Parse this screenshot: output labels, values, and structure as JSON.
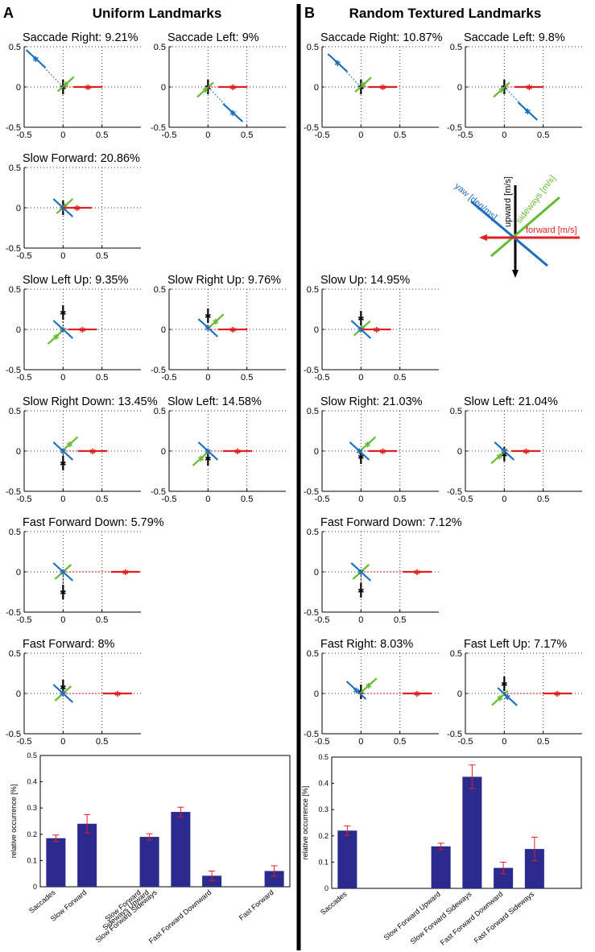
{
  "headers": {
    "A": "A",
    "A_title": "Uniform Landmarks",
    "B": "B",
    "B_title": "Random Textured Landmarks"
  },
  "colors": {
    "forward": "#e02020",
    "sideways": "#66bb33",
    "upward": "#000000",
    "yaw": "#1a6fbf",
    "bar": "#2b2a8f",
    "errorbar": "#e02020"
  },
  "axis_ticks": {
    "x": [
      "-0.5",
      "0",
      "0.5"
    ],
    "y": [
      "0.5",
      "0",
      "-0.5"
    ]
  },
  "legend": {
    "upward": "upward [m/s]",
    "sideways": "sideways [m/s]",
    "forward": "forward [m/s]",
    "yaw": "yaw [deg/ms]"
  },
  "chart_data": [
    {
      "type": "scatter",
      "panel": "A",
      "row": 0,
      "col": 0,
      "title": "Saccade Right: 9.21%",
      "xlim": [
        -0.5,
        1
      ],
      "ylim": [
        -0.5,
        0.5
      ],
      "forward": 0.32,
      "sideways": 0.05,
      "upward": 0.0,
      "yaw": {
        "x": -0.35,
        "y": 0.35
      }
    },
    {
      "type": "scatter",
      "panel": "A",
      "row": 0,
      "col": 1,
      "title": "Saccade Left: 9%",
      "xlim": [
        -0.5,
        1
      ],
      "ylim": [
        -0.5,
        0.5
      ],
      "forward": 0.32,
      "sideways": -0.05,
      "upward": 0.0,
      "yaw": {
        "x": 0.32,
        "y": -0.32
      }
    },
    {
      "type": "scatter",
      "panel": "A",
      "row": 1,
      "col": 0,
      "title": "Slow Forward: 20.86%",
      "xlim": [
        -0.5,
        1
      ],
      "ylim": [
        -0.5,
        0.5
      ],
      "forward": 0.18,
      "sideways": 0.03,
      "upward": 0.0,
      "yaw": {
        "x": 0.0,
        "y": 0.0
      }
    },
    {
      "type": "scatter",
      "panel": "A",
      "row": 2,
      "col": 0,
      "title": "Slow Left Up: 9.35%",
      "xlim": [
        -0.5,
        1
      ],
      "ylim": [
        -0.5,
        0.5
      ],
      "forward": 0.25,
      "sideways": -0.13,
      "upward": 0.21,
      "yaw": {
        "x": 0.0,
        "y": 0.0
      }
    },
    {
      "type": "scatter",
      "panel": "A",
      "row": 2,
      "col": 1,
      "title": "Slow Right Up: 9.76%",
      "xlim": [
        -0.5,
        1
      ],
      "ylim": [
        -0.5,
        0.5
      ],
      "forward": 0.32,
      "sideways": 0.14,
      "upward": 0.17,
      "yaw": {
        "x": 0.0,
        "y": 0.02
      }
    },
    {
      "type": "scatter",
      "panel": "A",
      "row": 3,
      "col": 0,
      "title": "Slow Right Down: 13.45%",
      "xlim": [
        -0.5,
        1
      ],
      "ylim": [
        -0.5,
        0.5
      ],
      "forward": 0.38,
      "sideways": 0.12,
      "upward": -0.15,
      "yaw": {
        "x": 0.0,
        "y": 0.0
      }
    },
    {
      "type": "scatter",
      "panel": "A",
      "row": 3,
      "col": 1,
      "title": "Slow Left: 14.58%",
      "xlim": [
        -0.5,
        1
      ],
      "ylim": [
        -0.5,
        0.5
      ],
      "forward": 0.38,
      "sideways": -0.13,
      "upward": -0.09,
      "yaw": {
        "x": 0.0,
        "y": 0.0
      }
    },
    {
      "type": "scatter",
      "panel": "A",
      "row": 4,
      "col": 0,
      "title": "Fast Forward Down: 5.79%",
      "xlim": [
        -0.5,
        1
      ],
      "ylim": [
        -0.5,
        0.5
      ],
      "forward": 0.8,
      "sideways": 0.0,
      "upward": -0.25,
      "yaw": {
        "x": 0.0,
        "y": 0.0
      }
    },
    {
      "type": "scatter",
      "panel": "A",
      "row": 5,
      "col": 0,
      "title": "Fast Forward: 8%",
      "xlim": [
        -0.5,
        1
      ],
      "ylim": [
        -0.5,
        0.5
      ],
      "forward": 0.7,
      "sideways": 0.0,
      "upward": 0.08,
      "yaw": {
        "x": 0.0,
        "y": 0.0
      }
    },
    {
      "type": "scatter",
      "panel": "B",
      "row": 0,
      "col": 0,
      "title": "Saccade Right: 10.87%",
      "xlim": [
        -0.5,
        1
      ],
      "ylim": [
        -0.5,
        0.5
      ],
      "forward": 0.28,
      "sideways": 0.04,
      "upward": 0.0,
      "yaw": {
        "x": -0.3,
        "y": 0.3
      }
    },
    {
      "type": "scatter",
      "panel": "B",
      "row": 0,
      "col": 1,
      "title": "Saccade Left: 9.8%",
      "xlim": [
        -0.5,
        1
      ],
      "ylim": [
        -0.5,
        0.5
      ],
      "forward": 0.32,
      "sideways": -0.05,
      "upward": 0.0,
      "yaw": {
        "x": 0.3,
        "y": -0.3
      }
    },
    {
      "type": "scatter",
      "panel": "B",
      "row": 2,
      "col": 0,
      "title": "Slow Up: 14.95%",
      "xlim": [
        -0.5,
        1
      ],
      "ylim": [
        -0.5,
        0.5
      ],
      "forward": 0.2,
      "sideways": 0.02,
      "upward": 0.14,
      "yaw": {
        "x": 0.0,
        "y": 0.0
      }
    },
    {
      "type": "scatter",
      "panel": "B",
      "row": 3,
      "col": 0,
      "title": "Slow Right: 21.03%",
      "xlim": [
        -0.5,
        1
      ],
      "ylim": [
        -0.5,
        0.5
      ],
      "forward": 0.28,
      "sideways": 0.12,
      "upward": -0.07,
      "yaw": {
        "x": -0.02,
        "y": 0.0
      }
    },
    {
      "type": "scatter",
      "panel": "B",
      "row": 3,
      "col": 1,
      "title": "Slow Left: 21.04%",
      "xlim": [
        -0.5,
        1
      ],
      "ylim": [
        -0.5,
        0.5
      ],
      "forward": 0.28,
      "sideways": -0.09,
      "upward": -0.04,
      "yaw": {
        "x": 0.0,
        "y": 0.0
      }
    },
    {
      "type": "scatter",
      "panel": "B",
      "row": 4,
      "col": 0,
      "title": "Fast Forward Down: 7.12%",
      "xlim": [
        -0.5,
        1
      ],
      "ylim": [
        -0.5,
        0.5
      ],
      "forward": 0.72,
      "sideways": 0.0,
      "upward": -0.23,
      "yaw": {
        "x": 0.0,
        "y": 0.0
      }
    },
    {
      "type": "scatter",
      "panel": "B",
      "row": 5,
      "col": 0,
      "title": "Fast Right: 8.03%",
      "xlim": [
        -0.5,
        1
      ],
      "ylim": [
        -0.5,
        0.5
      ],
      "forward": 0.72,
      "sideways": 0.14,
      "upward": 0.02,
      "yaw": {
        "x": -0.06,
        "y": 0.04
      }
    },
    {
      "type": "scatter",
      "panel": "B",
      "row": 5,
      "col": 1,
      "title": "Fast Left Up: 7.17%",
      "xlim": [
        -0.5,
        1
      ],
      "ylim": [
        -0.5,
        0.5
      ],
      "forward": 0.68,
      "sideways": -0.08,
      "upward": 0.12,
      "yaw": {
        "x": 0.04,
        "y": -0.04
      }
    },
    {
      "type": "bar",
      "panel": "A",
      "ylabel": "relative occurrence [%]",
      "ylim": [
        0,
        0.5
      ],
      "yticks": [
        "0",
        "0.1",
        "0.2",
        "0.3",
        "0.4",
        "0.5"
      ],
      "categories": [
        "Saccades",
        "Slow Forward",
        "",
        "Slow Forward Sideways Upward",
        "Slow Forward Sideways",
        "Fast Forward Downward",
        "",
        "Fast Forward"
      ],
      "tick_labels": [
        "Saccades",
        "Slow Forward",
        "Slow Forward",
        "Sideways Upward",
        "Slow Forward Sideways",
        "Fast Forward Downward",
        "Fast Forward"
      ],
      "values": [
        0.185,
        0.24,
        null,
        0.19,
        0.285,
        0.042,
        null,
        0.06
      ],
      "errors": [
        0.012,
        0.035,
        null,
        0.012,
        0.018,
        0.018,
        null,
        0.02
      ]
    },
    {
      "type": "bar",
      "panel": "B",
      "ylabel": "relative occurrence [%]",
      "ylim": [
        0,
        0.5
      ],
      "yticks": [
        "0",
        "0.1",
        "0.2",
        "0.3",
        "0.4",
        "0.5"
      ],
      "categories": [
        "Saccades",
        "",
        "",
        "Slow Forward Upward",
        "Slow Forward Sideways",
        "Fast Forward Downward",
        "Fast Forward Sideways",
        ""
      ],
      "tick_labels": [
        "Saccades",
        "Slow Forward Upward",
        "Slow Forward Sideways",
        "Fast Forward Downward",
        "Fast Forward Sideways"
      ],
      "values": [
        0.22,
        null,
        null,
        0.16,
        0.425,
        0.078,
        0.15,
        null
      ],
      "errors": [
        0.018,
        null,
        null,
        0.012,
        0.045,
        0.022,
        0.045,
        null
      ]
    }
  ]
}
